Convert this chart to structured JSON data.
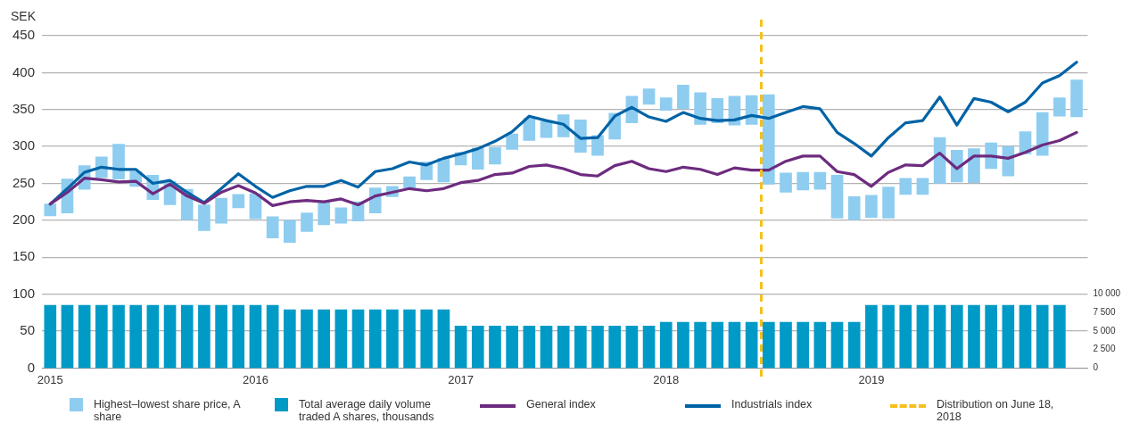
{
  "chart_data": {
    "type": "bar",
    "ylabel": "SEK",
    "x": [
      "2015-01",
      "2015-02",
      "2015-03",
      "2015-04",
      "2015-05",
      "2015-06",
      "2015-07",
      "2015-08",
      "2015-09",
      "2015-10",
      "2015-11",
      "2015-12",
      "2016-01",
      "2016-02",
      "2016-03",
      "2016-04",
      "2016-05",
      "2016-06",
      "2016-07",
      "2016-08",
      "2016-09",
      "2016-10",
      "2016-11",
      "2016-12",
      "2017-01",
      "2017-02",
      "2017-03",
      "2017-04",
      "2017-05",
      "2017-06",
      "2017-07",
      "2017-08",
      "2017-09",
      "2017-10",
      "2017-11",
      "2017-12",
      "2018-01",
      "2018-02",
      "2018-03",
      "2018-04",
      "2018-05",
      "2018-06",
      "2018-07",
      "2018-08",
      "2018-09",
      "2018-10",
      "2018-11",
      "2018-12",
      "2019-01",
      "2019-02",
      "2019-03",
      "2019-04",
      "2019-05",
      "2019-06",
      "2019-07",
      "2019-08",
      "2019-09",
      "2019-10",
      "2019-11",
      "2019-12",
      "2020-01"
    ],
    "xlim": [
      "2014-12-17",
      "2020-01-21"
    ],
    "xticks": [
      {
        "value": "2015-01",
        "label": "2015"
      },
      {
        "value": "2016-01",
        "label": "2016"
      },
      {
        "value": "2017-01",
        "label": "2017"
      },
      {
        "value": "2018-01",
        "label": "2018"
      },
      {
        "value": "2019-01",
        "label": "2019"
      }
    ],
    "ylim": [
      0,
      450
    ],
    "yticks": [
      0,
      50,
      100,
      150,
      200,
      250,
      300,
      350,
      400,
      450
    ],
    "y2lim": [
      0,
      45000
    ],
    "y2ticks": [
      0,
      {
        "value": 2500,
        "label": "2 500"
      },
      {
        "value": 5000,
        "label": "5 000"
      },
      {
        "value": 7500,
        "label": "7 500"
      },
      {
        "value": 10000,
        "label": "10 000"
      }
    ],
    "grid": "y",
    "legend": "bottom",
    "marker": "none",
    "line_style": "solid",
    "series": [
      {
        "name": "Highest–lowest share price, A share",
        "color": "#8ecdf0",
        "base": [
          206,
          210,
          242,
          258,
          256,
          246,
          228,
          221,
          201,
          186,
          196,
          217,
          202,
          176,
          170,
          185,
          194,
          196,
          199,
          210,
          232,
          244,
          255,
          252,
          275,
          269,
          276,
          296,
          308,
          312,
          313,
          292,
          288,
          310,
          332,
          357,
          349,
          351,
          330,
          332,
          329,
          330,
          249,
          238,
          241,
          242,
          203,
          201,
          204,
          203,
          235,
          235,
          250,
          252,
          251,
          270,
          260,
          290,
          288,
          341,
          340
        ],
        "values": [
          16,
          46,
          32,
          28,
          47,
          20,
          33,
          32,
          41,
          35,
          34,
          18,
          34,
          29,
          30,
          25,
          31,
          21,
          26,
          34,
          14,
          15,
          24,
          32,
          17,
          29,
          23,
          21,
          30,
          22,
          30,
          44,
          27,
          35,
          36,
          21,
          17,
          32,
          43,
          33,
          39,
          39,
          121,
          26,
          24,
          23,
          58,
          31,
          30,
          42,
          22,
          22,
          62,
          43,
          46,
          35,
          40,
          30,
          58,
          25,
          50
        ]
      },
      {
        "name": "Total average daily volume traded A shares, thousands",
        "axis": "y2",
        "color": "#009ac7",
        "x": [
          "2015-01",
          "2015-02",
          "2015-03",
          "2015-04",
          "2015-05",
          "2015-06",
          "2015-07",
          "2015-08",
          "2015-09",
          "2015-10",
          "2015-11",
          "2015-12",
          "2016-01",
          "2016-02",
          "2016-03",
          "2016-04",
          "2016-05",
          "2016-06",
          "2016-07",
          "2016-08",
          "2016-09",
          "2016-10",
          "2016-11",
          "2016-12",
          "2017-01",
          "2017-02",
          "2017-03",
          "2017-04",
          "2017-05",
          "2017-06",
          "2017-07",
          "2017-08",
          "2017-09",
          "2017-10",
          "2017-11",
          "2017-12",
          "2018-01",
          "2018-02",
          "2018-03",
          "2018-04",
          "2018-05",
          "2018-06",
          "2018-07",
          "2018-08",
          "2018-09",
          "2018-10",
          "2018-11",
          "2018-12",
          "2019-01",
          "2019-02",
          "2019-03",
          "2019-04",
          "2019-05",
          "2019-06",
          "2019-07",
          "2019-08",
          "2019-09",
          "2019-10",
          "2019-11",
          "2019-12"
        ],
        "values": [
          8500,
          8500,
          8500,
          8500,
          8500,
          8500,
          8500,
          8500,
          8500,
          8500,
          8500,
          8500,
          8500,
          8500,
          7900,
          7900,
          7900,
          7900,
          7900,
          7900,
          7900,
          7900,
          7900,
          7900,
          5700,
          5700,
          5700,
          5700,
          5700,
          5700,
          5700,
          5700,
          5700,
          5700,
          5700,
          5700,
          6200,
          6200,
          6200,
          6200,
          6200,
          6200,
          6200,
          6200,
          6200,
          6200,
          6200,
          6200,
          8500,
          8500,
          8500,
          8500,
          8500,
          8500,
          8500,
          8500,
          8500,
          8500,
          8500,
          8500
        ]
      },
      {
        "name": "General index",
        "type": "line",
        "color": "#6d2b7f",
        "values": [
          222,
          238,
          257,
          255,
          252,
          253,
          236,
          249,
          233,
          223,
          238,
          247,
          237,
          220,
          225,
          227,
          225,
          229,
          221,
          233,
          238,
          243,
          240,
          243,
          251,
          254,
          262,
          264,
          273,
          275,
          270,
          262,
          260,
          274,
          280,
          270,
          266,
          272,
          269,
          262,
          271,
          268,
          268,
          280,
          287,
          287,
          266,
          262,
          246,
          265,
          275,
          274,
          291,
          270,
          287,
          287,
          284,
          292,
          302,
          308,
          319
        ]
      },
      {
        "name": "Industrials index",
        "type": "line",
        "color": "#0063a6",
        "values": [
          222,
          243,
          265,
          272,
          269,
          269,
          250,
          254,
          238,
          224,
          243,
          263,
          246,
          231,
          240,
          246,
          246,
          254,
          245,
          266,
          270,
          279,
          275,
          284,
          290,
          297,
          307,
          320,
          341,
          335,
          330,
          311,
          312,
          341,
          353,
          340,
          334,
          346,
          338,
          335,
          336,
          342,
          338,
          346,
          354,
          351,
          319,
          304,
          287,
          312,
          332,
          335,
          367,
          329,
          365,
          360,
          347,
          360,
          386,
          396,
          414
        ]
      }
    ],
    "ref_lines": [
      {
        "axis": "x",
        "value": "2018-06-18",
        "label": "Distribution on June 18, 2018",
        "color": "#f7bf1b",
        "line_style": "dashed"
      }
    ]
  }
}
